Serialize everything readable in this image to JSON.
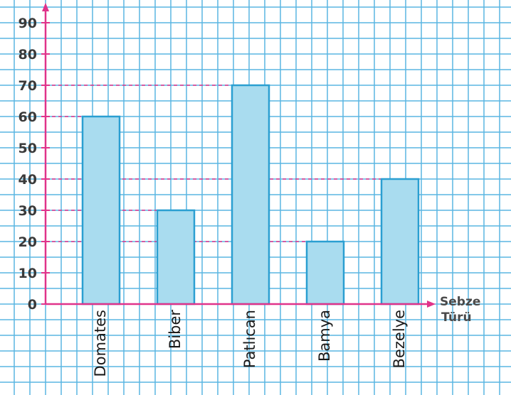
{
  "chart_data": {
    "type": "bar",
    "title": "",
    "xlabel": [
      "Sebze",
      "Türü"
    ],
    "ylabel": "",
    "categories": [
      "Domates",
      "Biber",
      "Patlıcan",
      "Bamya",
      "Bezelye"
    ],
    "values": [
      60,
      30,
      70,
      20,
      40
    ],
    "ylim": [
      0,
      90
    ],
    "yticks": [
      0,
      10,
      20,
      30,
      40,
      50,
      60,
      70,
      80,
      90
    ],
    "grid": true,
    "colors": {
      "bar_fill": "#a9dcef",
      "bar_stroke": "#2b9fd1",
      "grid": "#5ab6e2",
      "axis": "#e0338a",
      "guide": "#e0338a"
    }
  }
}
